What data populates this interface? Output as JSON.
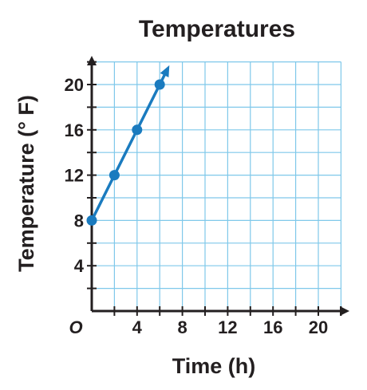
{
  "chart_data": {
    "type": "line",
    "title": "Temperatures",
    "xlabel": "Time (h)",
    "ylabel": "Temperature (° F)",
    "origin_label": "O",
    "xlim": [
      0,
      22
    ],
    "ylim": [
      0,
      22
    ],
    "grid": true,
    "x_ticks": [
      4,
      8,
      12,
      16,
      20
    ],
    "y_ticks": [
      4,
      8,
      12,
      16,
      20
    ],
    "x_tick_labels": [
      "4",
      "8",
      "12",
      "16",
      "20"
    ],
    "y_tick_labels": [
      "4",
      "8",
      "12",
      "16",
      "20"
    ],
    "series": [
      {
        "x": [
          0,
          2,
          4,
          6
        ],
        "y": [
          8,
          12,
          16,
          20
        ]
      }
    ],
    "ray_continues": true,
    "colors": {
      "line": "#1a7bbf",
      "grid": "#7fc8ea",
      "axis": "#231f20",
      "text": "#231f20"
    }
  }
}
